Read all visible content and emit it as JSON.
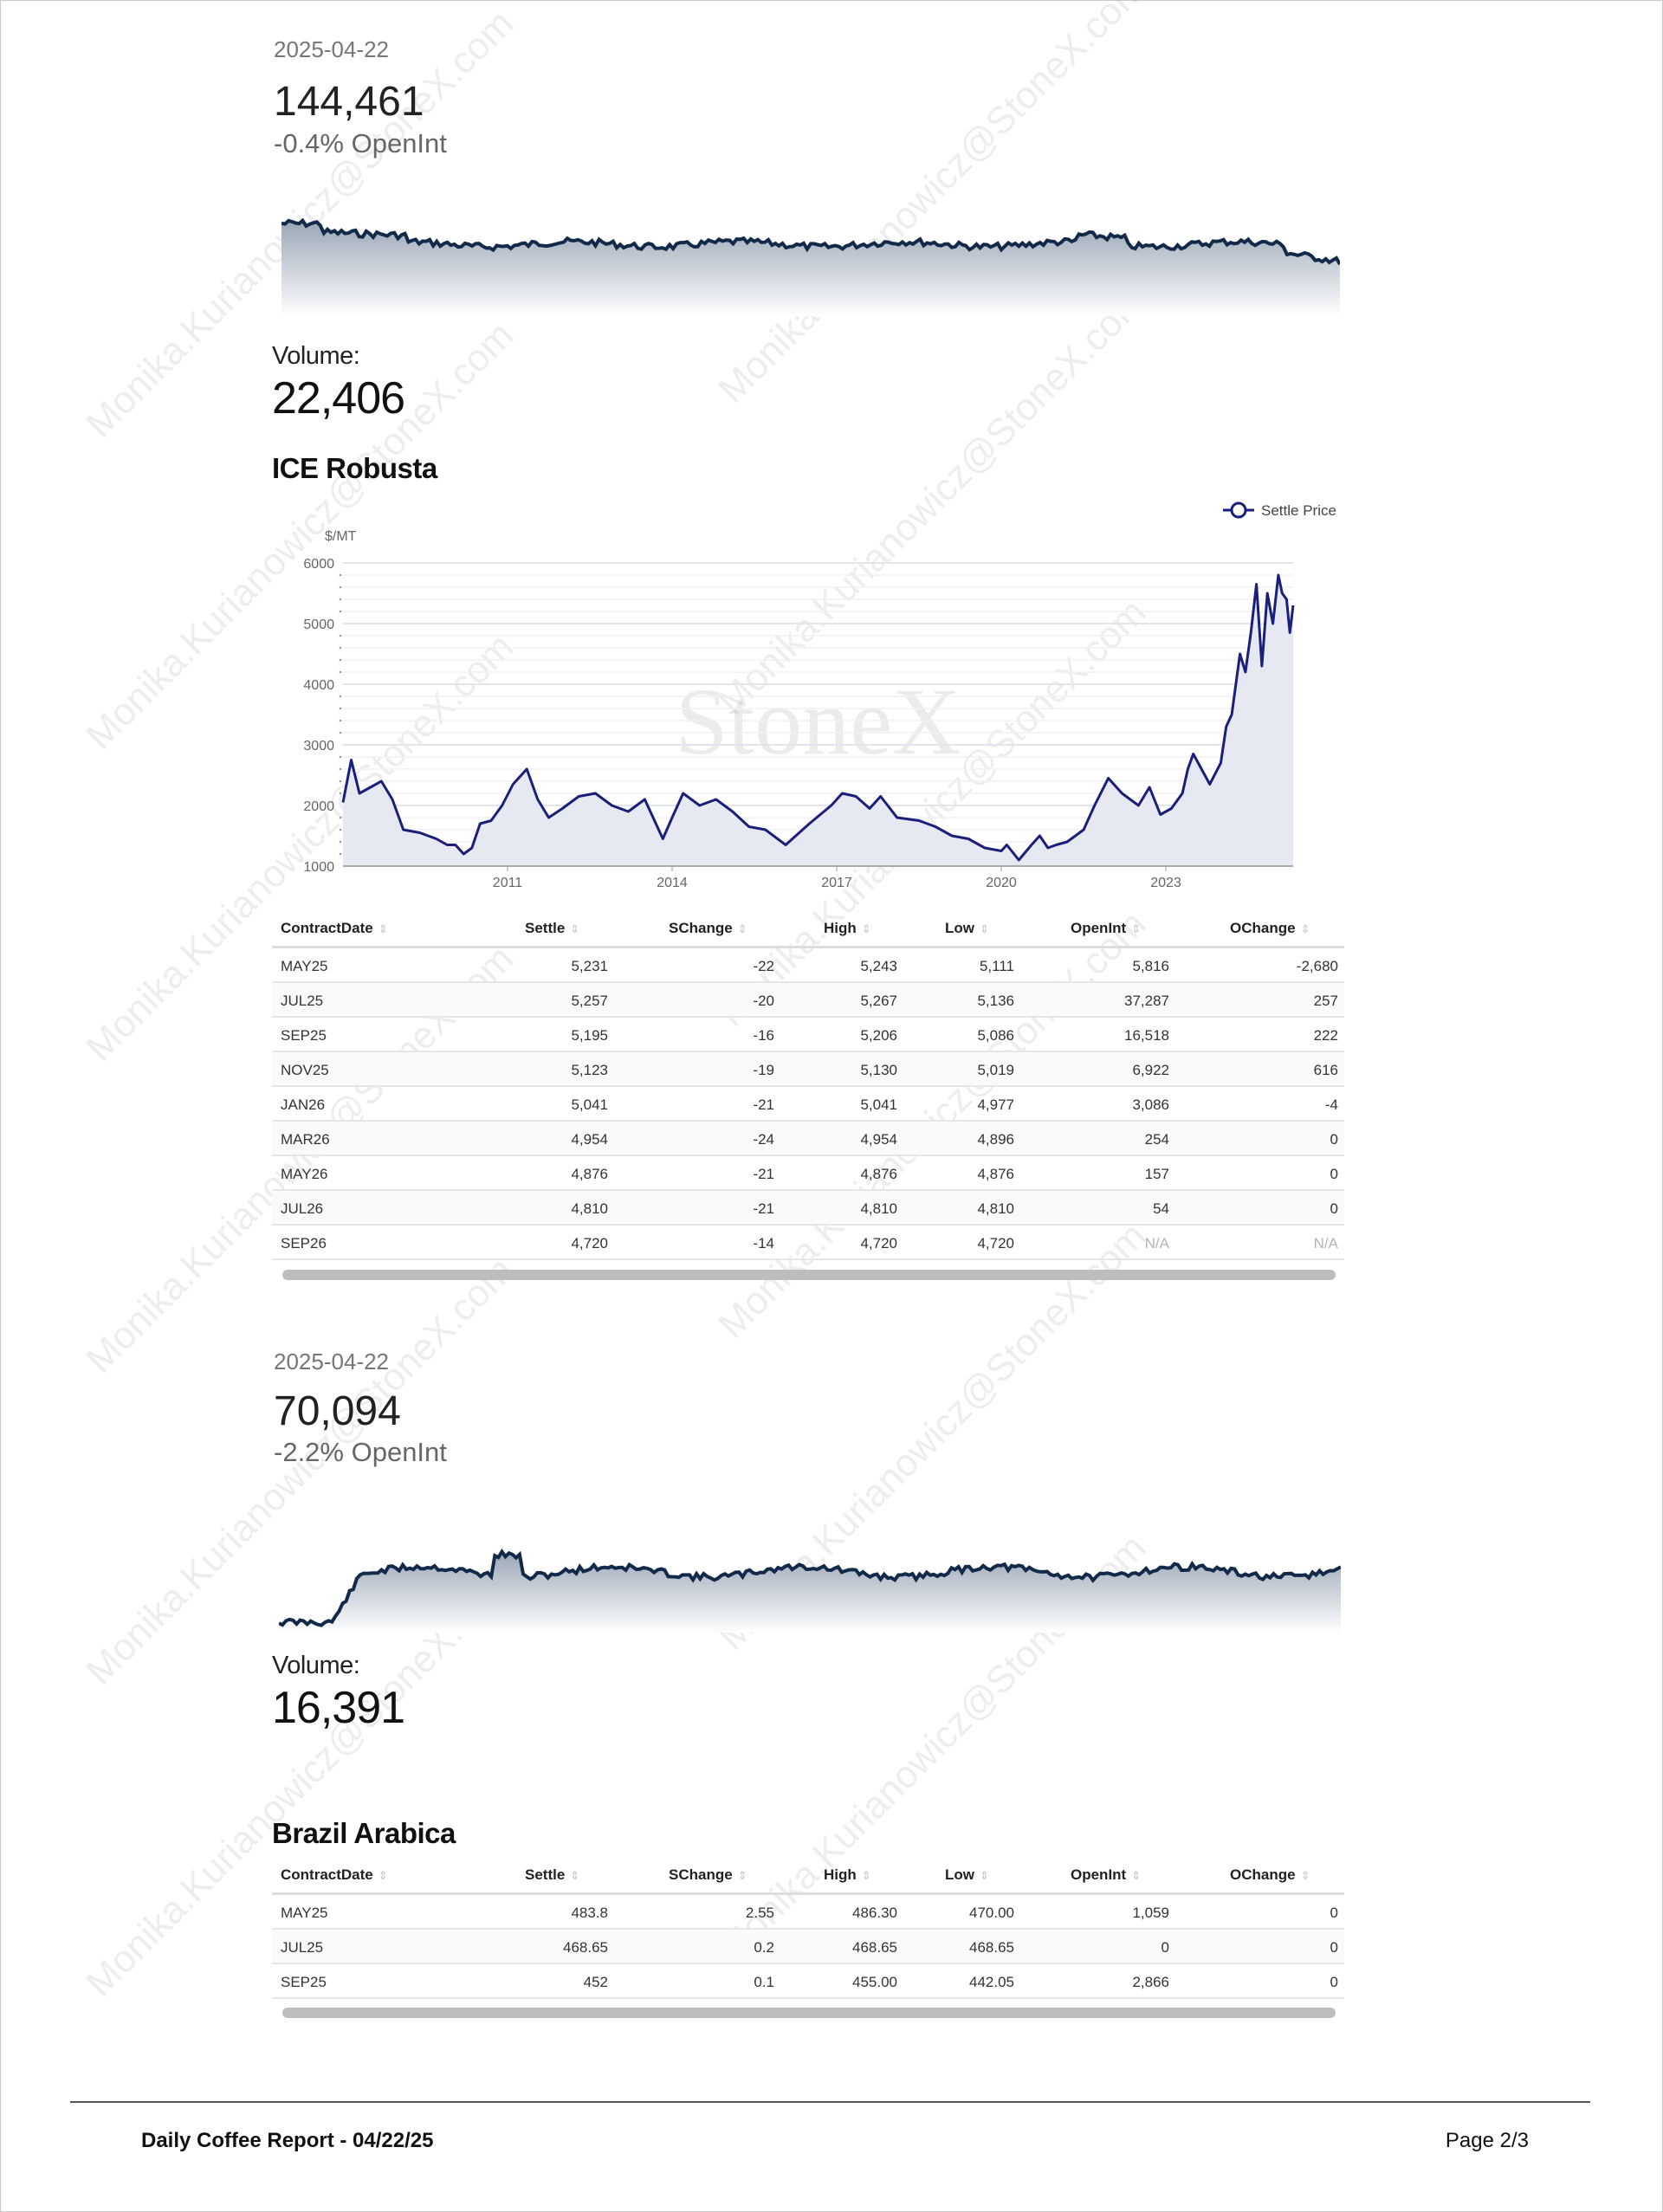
{
  "watermark": "Monika.Kurianowicz@StoneX.com",
  "robusta_summary": {
    "date": "2025-04-22",
    "openint_value": "144,461",
    "openint_change": "-0.4% OpenInt",
    "volume_label": "Volume:",
    "volume_value": "22,406"
  },
  "robusta": {
    "title": "ICE Robusta",
    "columns": [
      "ContractDate",
      "Settle",
      "SChange",
      "High",
      "Low",
      "OpenInt",
      "OChange"
    ],
    "rows": [
      [
        "MAY25",
        "5,231",
        "-22",
        "5,243",
        "5,111",
        "5,816",
        "-2,680"
      ],
      [
        "JUL25",
        "5,257",
        "-20",
        "5,267",
        "5,136",
        "37,287",
        "257"
      ],
      [
        "SEP25",
        "5,195",
        "-16",
        "5,206",
        "5,086",
        "16,518",
        "222"
      ],
      [
        "NOV25",
        "5,123",
        "-19",
        "5,130",
        "5,019",
        "6,922",
        "616"
      ],
      [
        "JAN26",
        "5,041",
        "-21",
        "5,041",
        "4,977",
        "3,086",
        "-4"
      ],
      [
        "MAR26",
        "4,954",
        "-24",
        "4,954",
        "4,896",
        "254",
        "0"
      ],
      [
        "MAY26",
        "4,876",
        "-21",
        "4,876",
        "4,876",
        "157",
        "0"
      ],
      [
        "JUL26",
        "4,810",
        "-21",
        "4,810",
        "4,810",
        "54",
        "0"
      ],
      [
        "SEP26",
        "4,720",
        "-14",
        "4,720",
        "4,720",
        "N/A",
        "N/A"
      ]
    ]
  },
  "chart_data": {
    "type": "area",
    "ylabel": "$/MT",
    "ylim": [
      1000,
      6000
    ],
    "yticks": [
      1000,
      2000,
      3000,
      4000,
      5000,
      6000
    ],
    "xlim": [
      2008.0,
      2025.32
    ],
    "xticks": [
      2011,
      2014,
      2017,
      2020,
      2023
    ],
    "grid": true,
    "legend": "top-right",
    "watermark_logo": "StoneX",
    "series": [
      {
        "name": "Settle Price",
        "color": "#1a1f7a",
        "x": [
          2008.0,
          2008.15,
          2008.3,
          2008.5,
          2008.7,
          2008.9,
          2009.1,
          2009.4,
          2009.7,
          2009.9,
          2010.05,
          2010.2,
          2010.35,
          2010.5,
          2010.7,
          2010.9,
          2011.1,
          2011.35,
          2011.55,
          2011.75,
          2012.0,
          2012.3,
          2012.6,
          2012.9,
          2013.2,
          2013.5,
          2013.83,
          2014.0,
          2014.2,
          2014.5,
          2014.8,
          2015.1,
          2015.4,
          2015.7,
          2016.07,
          2016.5,
          2016.9,
          2017.1,
          2017.35,
          2017.6,
          2017.8,
          2018.1,
          2018.5,
          2018.8,
          2019.1,
          2019.4,
          2019.7,
          2020.0,
          2020.1,
          2020.32,
          2020.55,
          2020.7,
          2020.85,
          2021.0,
          2021.2,
          2021.5,
          2021.7,
          2021.95,
          2022.2,
          2022.5,
          2022.7,
          2022.9,
          2023.1,
          2023.3,
          2023.4,
          2023.5,
          2023.65,
          2023.8,
          2024.0,
          2024.1,
          2024.2,
          2024.35,
          2024.45,
          2024.55,
          2024.65,
          2024.75,
          2024.85,
          2024.95,
          2025.05,
          2025.12,
          2025.2,
          2025.26,
          2025.32
        ],
        "y": [
          2050,
          2750,
          2200,
          2300,
          2400,
          2100,
          1600,
          1550,
          1450,
          1350,
          1350,
          1200,
          1300,
          1700,
          1750,
          2000,
          2350,
          2600,
          2100,
          1800,
          1950,
          2150,
          2200,
          2000,
          1900,
          2100,
          1450,
          1800,
          2200,
          2000,
          2100,
          1900,
          1650,
          1600,
          1350,
          1700,
          2000,
          2200,
          2150,
          1950,
          2150,
          1800,
          1750,
          1650,
          1500,
          1450,
          1300,
          1250,
          1350,
          1100,
          1350,
          1500,
          1300,
          1350,
          1400,
          1600,
          2000,
          2450,
          2200,
          2000,
          2300,
          1850,
          1950,
          2200,
          2600,
          2850,
          2600,
          2350,
          2700,
          3300,
          3500,
          4500,
          4200,
          4850,
          5650,
          4300,
          5500,
          5000,
          5800,
          5500,
          5400,
          4850,
          5300
        ]
      }
    ]
  },
  "arabica_summary": {
    "date": "2025-04-22",
    "openint_value": "70,094",
    "openint_change": "-2.2% OpenInt",
    "volume_label": "Volume:",
    "volume_value": "16,391"
  },
  "arabica": {
    "title": "Brazil Arabica",
    "columns": [
      "ContractDate",
      "Settle",
      "SChange",
      "High",
      "Low",
      "OpenInt",
      "OChange"
    ],
    "rows": [
      [
        "MAY25",
        "483.8",
        "2.55",
        "486.30",
        "470.00",
        "1,059",
        "0"
      ],
      [
        "JUL25",
        "468.65",
        "0.2",
        "468.65",
        "468.65",
        "0",
        "0"
      ],
      [
        "SEP25",
        "452",
        "0.1",
        "455.00",
        "442.05",
        "2,866",
        "0"
      ]
    ]
  },
  "footer": {
    "title": "Daily Coffee Report - 04/22/25",
    "page": "Page 2/3"
  },
  "colors": {
    "line": "#1a1f7a",
    "sparkline": "#12294a",
    "area_fill": "#e6e8f2"
  }
}
